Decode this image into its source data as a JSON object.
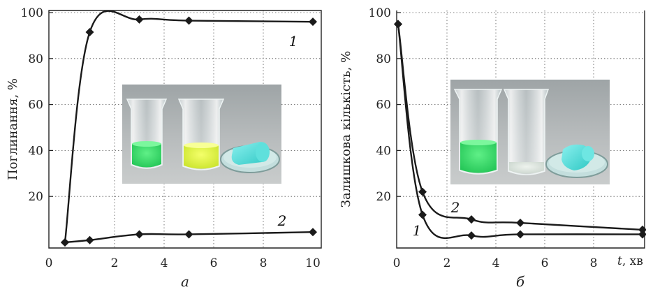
{
  "chart_data": [
    {
      "type": "line",
      "ylabel": "Поглинання, %",
      "xlabel": "",
      "sublabel": "а",
      "xlim": [
        0,
        10
      ],
      "ylim": [
        0,
        100
      ],
      "xticks": [
        0,
        2,
        4,
        6,
        8,
        10
      ],
      "yticks": [
        20,
        40,
        60,
        80,
        100
      ],
      "grid": true,
      "series": [
        {
          "name": "1",
          "x": [
            0,
            1,
            3,
            5,
            10
          ],
          "y": [
            0,
            91.5,
            97,
            96.5,
            96
          ]
        },
        {
          "name": "2",
          "x": [
            0,
            1,
            3,
            5,
            10
          ],
          "y": [
            0,
            1,
            3.5,
            3.5,
            4.5
          ]
        }
      ],
      "inset_photo": true
    },
    {
      "type": "line",
      "ylabel": "Залишкова кількість, %",
      "xlabel": "t, хв",
      "sublabel": "б",
      "xlim": [
        0,
        10
      ],
      "ylim": [
        0,
        100
      ],
      "xticks": [
        0,
        2,
        4,
        6,
        8
      ],
      "yticks": [
        20,
        40,
        60,
        80,
        100
      ],
      "grid": true,
      "series": [
        {
          "name": "1",
          "x": [
            0,
            1,
            3,
            5,
            10
          ],
          "y": [
            95,
            12,
            3,
            3.5,
            3.5
          ]
        },
        {
          "name": "2",
          "x": [
            0,
            1,
            3,
            5,
            10
          ],
          "y": [
            95,
            22,
            10,
            8.5,
            5.5
          ]
        }
      ],
      "inset_photo": true
    }
  ]
}
